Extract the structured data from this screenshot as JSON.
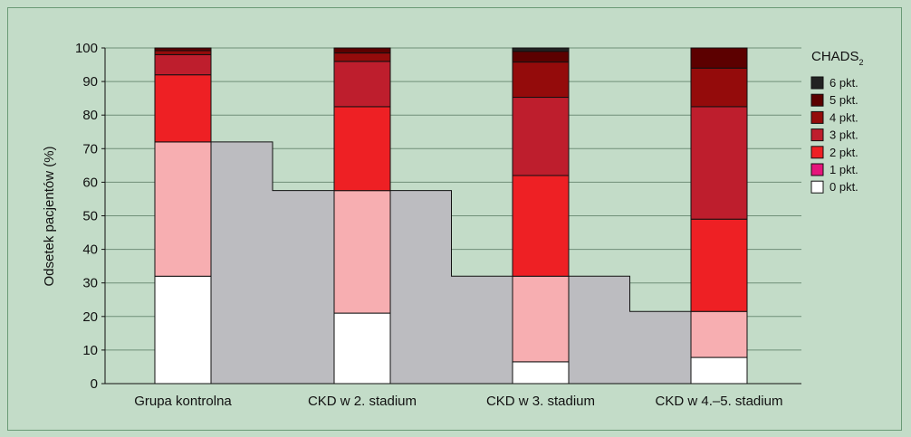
{
  "chart_data": {
    "type": "bar",
    "stacked": true,
    "ylabel": "Odsetek pacjentów (%)",
    "ylim": [
      0,
      100
    ],
    "yticks": [
      0,
      10,
      20,
      30,
      40,
      50,
      60,
      70,
      80,
      90,
      100
    ],
    "grid": true,
    "categories": [
      "Grupa kontrolna",
      "CKD w 2. stadium",
      "CKD w 3. stadium",
      "CKD w 4.–5. stadium"
    ],
    "series": [
      {
        "name": "0 pkt.",
        "color": "#ffffff",
        "values": [
          32,
          21,
          6.5,
          7.8
        ]
      },
      {
        "name": "1 pkt.",
        "color": "#f7aeb1",
        "values": [
          40,
          36.5,
          25.5,
          13.7
        ]
      },
      {
        "name": "2 pkt.",
        "color": "#ee2024",
        "values": [
          20,
          25,
          30,
          27.5
        ]
      },
      {
        "name": "3 pkt.",
        "color": "#be1e2d",
        "values": [
          6,
          13.5,
          23.3,
          33.5
        ]
      },
      {
        "name": "4 pkt.",
        "color": "#940b0b",
        "values": [
          1.2,
          2.5,
          10.5,
          11.5
        ]
      },
      {
        "name": "5 pkt.",
        "color": "#5c0000",
        "values": [
          0.8,
          1.5,
          3.2,
          6
        ]
      },
      {
        "name": "6 pkt.",
        "color": "#222222",
        "values": [
          0,
          0,
          1,
          0
        ]
      }
    ],
    "connector": {
      "color": "#bcbcc0",
      "values": [
        72,
        57.5,
        32,
        21.5
      ]
    },
    "legend": {
      "title_main": "CHADS",
      "title_sub": "2",
      "placement": "right",
      "entries": [
        {
          "label": "6 pkt.",
          "color": "#222222"
        },
        {
          "label": "5 pkt.",
          "color": "#5c0000"
        },
        {
          "label": "4 pkt.",
          "color": "#940b0b"
        },
        {
          "label": "3 pkt.",
          "color": "#be1e2d"
        },
        {
          "label": "2 pkt.",
          "color": "#ee2024"
        },
        {
          "label": "1 pkt.",
          "color": "#e5157b"
        },
        {
          "label": "0 pkt.",
          "color": "#ffffff"
        }
      ]
    }
  }
}
